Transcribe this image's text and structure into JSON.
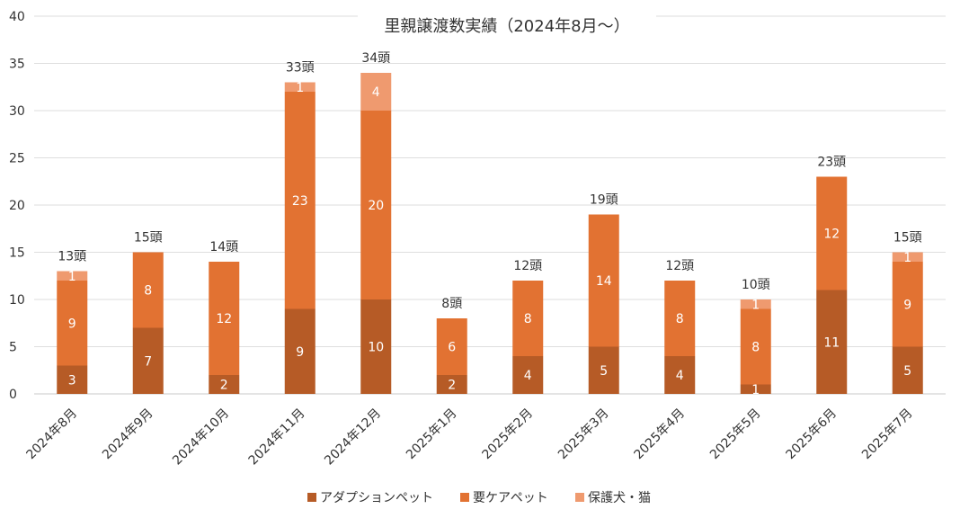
{
  "chart_data": {
    "type": "bar",
    "stacked": true,
    "title": "里親譲渡数実績（2024年8月～）",
    "categories": [
      "2024年8月",
      "2024年9月",
      "2024年10月",
      "2024年11月",
      "2024年12月",
      "2025年1月",
      "2025年2月",
      "2025年3月",
      "2025年4月",
      "2025年5月",
      "2025年6月",
      "2025年7月"
    ],
    "series": [
      {
        "name": "アダプションペット",
        "color": "#b65b26",
        "values": [
          3,
          7,
          2,
          9,
          10,
          2,
          4,
          5,
          4,
          1,
          11,
          5
        ]
      },
      {
        "name": "要ケアペット",
        "color": "#e27232",
        "values": [
          9,
          8,
          12,
          23,
          20,
          6,
          8,
          14,
          8,
          8,
          12,
          9
        ]
      },
      {
        "name": "保護犬・猫",
        "color": "#ef9a6f",
        "values": [
          1,
          0,
          0,
          1,
          4,
          0,
          0,
          0,
          0,
          1,
          0,
          1
        ]
      }
    ],
    "totals": [
      "13頭",
      "15頭",
      "14頭",
      "33頭",
      "34頭",
      "8頭",
      "12頭",
      "19頭",
      "12頭",
      "10頭",
      "23頭",
      "15頭"
    ],
    "ylim": [
      0,
      40
    ],
    "yticks": [
      0,
      5,
      10,
      15,
      20,
      25,
      30,
      35,
      40
    ],
    "grid": true,
    "legend_position": "bottom"
  }
}
